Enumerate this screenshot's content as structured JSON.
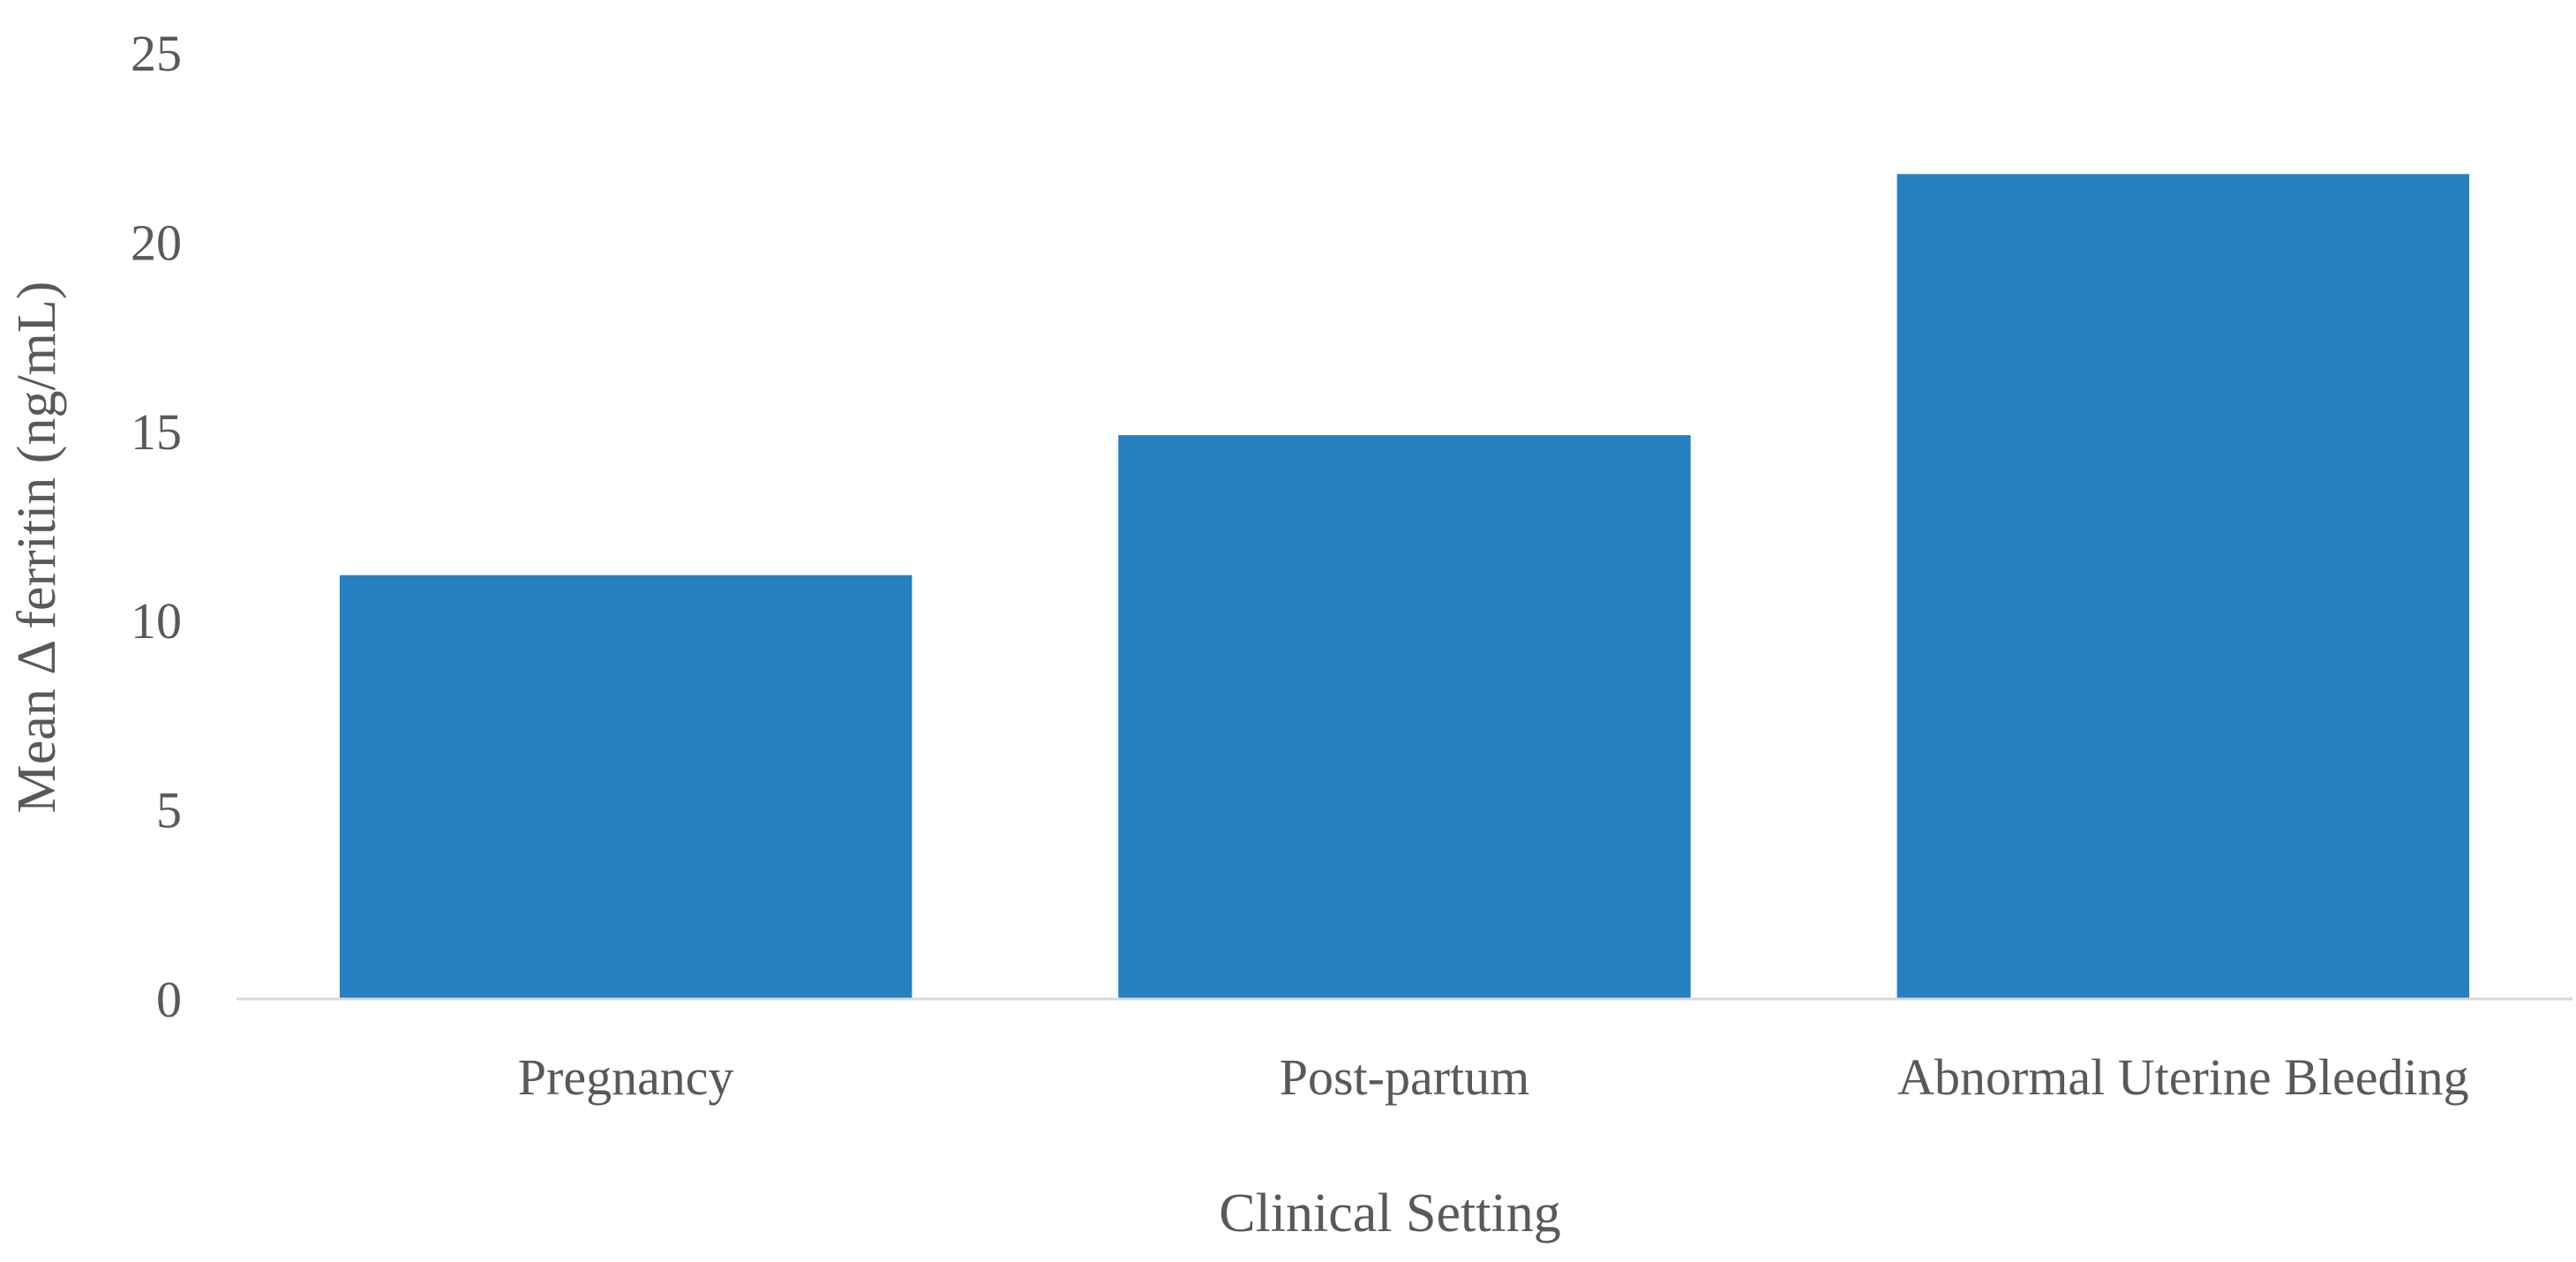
{
  "chart_data": {
    "type": "bar",
    "title": "",
    "xlabel": "Clinical Setting",
    "ylabel": "Mean Δ ferritin (ng/mL)",
    "categories": [
      "Pregnancy",
      "Post-partum",
      "Abnormal Uterine Bleeding"
    ],
    "series": [
      {
        "values": [
          11.2,
          14.9,
          21.8
        ]
      }
    ],
    "ylim": [
      0,
      25
    ],
    "yticks": [
      0,
      5,
      10,
      15,
      20,
      25
    ],
    "grid": false,
    "legend": "none",
    "colors": {
      "bar": "#2780c0",
      "axis": "#d9d9d9",
      "text": "#595959"
    }
  }
}
